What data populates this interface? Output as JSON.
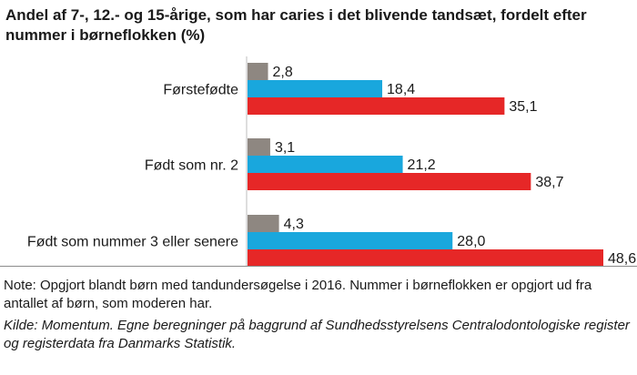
{
  "chart_data": {
    "type": "bar",
    "orientation": "horizontal",
    "title": "Andel af 7-, 12.- og 15-årige, som har caries i det blivende tandsæt, fordelt efter nummer i børneflokken (%)",
    "categories": [
      "Førstefødte",
      "Født som nr. 2",
      "Født som nummer 3 eller senere"
    ],
    "series": [
      {
        "name": "7-årige",
        "color": "#8e8781",
        "values": [
          2.8,
          3.1,
          4.3
        ],
        "labels": [
          "2,8",
          "3,1",
          "4,3"
        ]
      },
      {
        "name": "12-årige",
        "color": "#19a7dd",
        "values": [
          18.4,
          21.2,
          28.0
        ],
        "labels": [
          "18,4",
          "21,2",
          "28,0"
        ]
      },
      {
        "name": "15-årige",
        "color": "#e62727",
        "values": [
          35.1,
          38.7,
          48.6
        ],
        "labels": [
          "35,1",
          "38,7",
          "48,6"
        ]
      }
    ],
    "xlim": [
      0,
      48.6
    ],
    "grid": false,
    "xlabel": "",
    "ylabel": ""
  },
  "note": "Note: Opgjort blandt børn med tandundersøgelse i 2016. Nummer i børneflokken er opgjort ud fra antallet af børn, som moderen har.",
  "source": "Kilde: Momentum. Egne beregninger på baggrund af Sundhedsstyrelsens Centralodontologiske register og registerdata fra Danmarks Statistik."
}
